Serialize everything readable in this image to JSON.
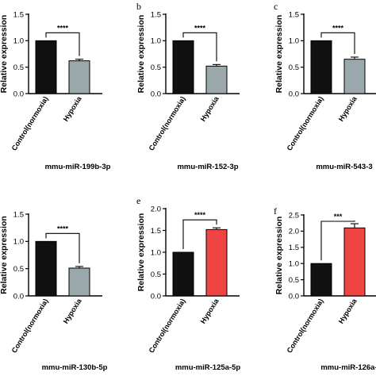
{
  "chart_data": [
    {
      "type": "bar",
      "panel_letter": "",
      "title": "mmu-miR-199b-3p",
      "ylabel": "Relative expression",
      "categories": [
        "Control(normoxia)",
        "Hypoxia"
      ],
      "values": [
        1.0,
        0.62
      ],
      "errors": [
        0,
        0.03
      ],
      "colors": [
        "#111111",
        "#9aa7ab"
      ],
      "ylim": [
        0,
        1.5
      ],
      "yticks": [
        "0.0",
        "0.5",
        "1.0",
        "1.5"
      ],
      "significance": "****"
    },
    {
      "type": "bar",
      "panel_letter": "b",
      "title": "mmu-miR-152-3p",
      "ylabel": "Relative expression",
      "categories": [
        "Control(normoxia)",
        "Hypoxia"
      ],
      "values": [
        1.0,
        0.52
      ],
      "errors": [
        0,
        0.03
      ],
      "colors": [
        "#111111",
        "#9aa7ab"
      ],
      "ylim": [
        0,
        1.5
      ],
      "yticks": [
        "0.0",
        "0.5",
        "1.0",
        "1.5"
      ],
      "significance": "****"
    },
    {
      "type": "bar",
      "panel_letter": "c",
      "title": "mmu-miR-543-3",
      "ylabel": "Relative expression",
      "categories": [
        "Control(normoxia)",
        "Hypoxia"
      ],
      "values": [
        1.0,
        0.65
      ],
      "errors": [
        0,
        0.04
      ],
      "colors": [
        "#111111",
        "#9aa7ab"
      ],
      "ylim": [
        0,
        1.5
      ],
      "yticks": [
        "0.0",
        "0.5",
        "1.0",
        "1.5"
      ],
      "significance": "****"
    },
    {
      "type": "bar",
      "panel_letter": "",
      "title": "mmu-miR-130b-5p",
      "ylabel": "Relative expression",
      "categories": [
        "Control(normoxia)",
        "Hypoxia"
      ],
      "values": [
        1.0,
        0.51
      ],
      "errors": [
        0,
        0.03
      ],
      "colors": [
        "#111111",
        "#9aa7ab"
      ],
      "ylim": [
        0,
        1.5
      ],
      "yticks": [
        "0.0",
        "0.5",
        "1.0",
        "1.5"
      ],
      "significance": "****"
    },
    {
      "type": "bar",
      "panel_letter": "e",
      "title": "mmu-miR-125a-5p",
      "ylabel": "Relative expression",
      "categories": [
        "Control(normoxia)",
        "Hypoxia"
      ],
      "values": [
        1.0,
        1.52
      ],
      "errors": [
        0,
        0.04
      ],
      "colors": [
        "#111111",
        "#f04545"
      ],
      "ylim": [
        0,
        2.0
      ],
      "yticks": [
        "0.0",
        "0.5",
        "1.0",
        "1.5",
        "2.0"
      ],
      "significance": "****"
    },
    {
      "type": "bar",
      "panel_letter": "f",
      "title": "mmu-miR-126a-",
      "ylabel": "Relative expression",
      "categories": [
        "Control(normoxia)",
        "Hypoxia"
      ],
      "values": [
        1.0,
        2.1
      ],
      "errors": [
        0,
        0.13
      ],
      "colors": [
        "#111111",
        "#f04545"
      ],
      "ylim": [
        0,
        2.5
      ],
      "yticks": [
        "0.0",
        "0.5",
        "1.0",
        "1.5",
        "2.0",
        "2.5"
      ],
      "significance": "***"
    }
  ]
}
